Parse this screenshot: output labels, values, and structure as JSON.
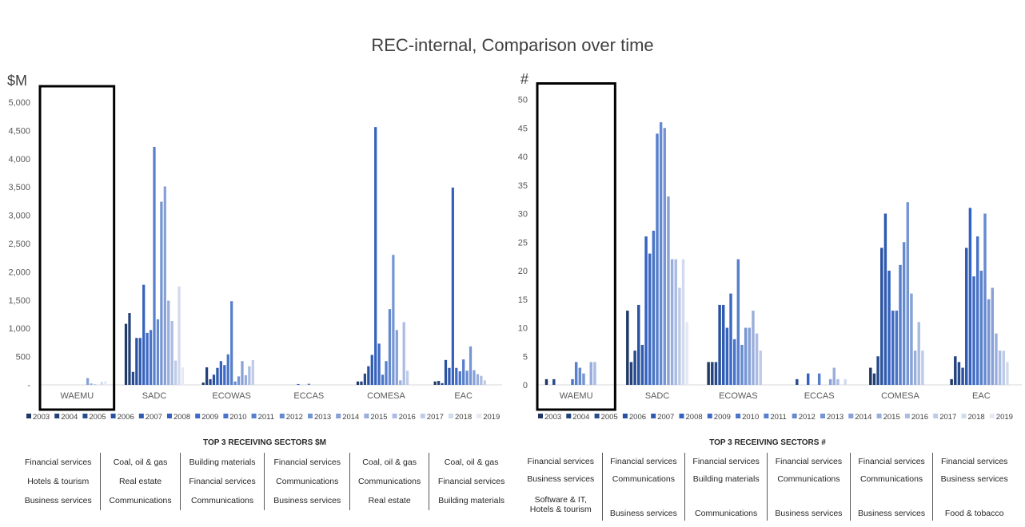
{
  "title": "REC-internal, Comparison over time",
  "colors": [
    "#203864",
    "#24417a",
    "#274b8f",
    "#2a52a0",
    "#2e5ab0",
    "#3562bf",
    "#3f6bc4",
    "#4a74c8",
    "#577fcc",
    "#658acf",
    "#7595d3",
    "#87a1d7",
    "#99aedc",
    "#abbce2",
    "#bfcbe7",
    "#d2daee",
    "#e4e9f5"
  ],
  "chart_data": [
    {
      "type": "bar",
      "name": "value",
      "unit_label": "$M",
      "ylim": [
        0,
        5000
      ],
      "yticks": [
        "-",
        "500",
        "1,000",
        "1,500",
        "2,000",
        "2,500",
        "3,000",
        "3,500",
        "4,000",
        "4,500",
        "5,000"
      ],
      "categories": [
        "WAEMU",
        "SADC",
        "ECOWAS",
        "ECCAS",
        "COMESA",
        "EAC"
      ],
      "years": [
        "2003",
        "2004",
        "2005",
        "2006",
        "2007",
        "2008",
        "2009",
        "2010",
        "2011",
        "2012",
        "2013",
        "2014",
        "2015",
        "2016",
        "2017",
        "2018",
        "2019"
      ],
      "highlight": "WAEMU",
      "values": [
        [
          0,
          0,
          0,
          0,
          0,
          0,
          0,
          0,
          0,
          0,
          0,
          120,
          25,
          10,
          0,
          55,
          65
        ],
        [
          1080,
          1270,
          230,
          830,
          830,
          1770,
          920,
          970,
          4210,
          1160,
          3240,
          3510,
          1490,
          1130,
          430,
          1740,
          310
        ],
        [
          40,
          310,
          100,
          180,
          300,
          420,
          350,
          540,
          1480,
          60,
          150,
          420,
          170,
          330,
          440,
          0,
          0
        ],
        [
          0,
          0,
          0,
          0,
          0,
          15,
          0,
          0,
          20,
          0,
          0,
          0,
          0,
          0,
          0,
          0,
          0
        ],
        [
          60,
          60,
          200,
          330,
          530,
          4560,
          730,
          180,
          420,
          1340,
          2300,
          970,
          80,
          1110,
          250,
          0,
          0
        ],
        [
          60,
          70,
          30,
          440,
          300,
          3490,
          300,
          240,
          450,
          250,
          680,
          260,
          190,
          160,
          80,
          0,
          0
        ]
      ],
      "sectors_title": "TOP 3 RECEIVING SECTORS $M",
      "sectors": [
        [
          "Financial services",
          "Coal, oil & gas",
          "Building materials",
          "Financial services",
          "Coal, oil & gas",
          "Coal, oil & gas"
        ],
        [
          "Hotels & tourism",
          "Real estate",
          "Financial services",
          "Communications",
          "Communications",
          "Financial services"
        ],
        [
          "Business services",
          "Communications",
          "Communications",
          "Business services",
          "Real estate",
          "Building materials"
        ]
      ]
    },
    {
      "type": "bar",
      "name": "count",
      "unit_label": "#",
      "ylim": [
        0,
        50
      ],
      "yticks": [
        "0",
        "5",
        "10",
        "15",
        "20",
        "25",
        "30",
        "35",
        "40",
        "45",
        "50"
      ],
      "categories": [
        "WAEMU",
        "SADC",
        "ECOWAS",
        "ECCAS",
        "COMESA",
        "EAC"
      ],
      "years": [
        "2003",
        "2004",
        "2005",
        "2006",
        "2007",
        "2008",
        "2009",
        "2010",
        "2011",
        "2012",
        "2013",
        "2014",
        "2015",
        "2016",
        "2017",
        "2018",
        "2019"
      ],
      "highlight": "WAEMU",
      "values": [
        [
          1,
          0,
          1,
          0,
          0,
          0,
          0,
          1,
          4,
          3,
          2,
          0,
          4,
          4,
          0,
          0,
          0
        ],
        [
          13,
          4,
          6,
          14,
          7,
          26,
          23,
          27,
          44,
          46,
          45,
          33,
          22,
          22,
          17,
          22,
          11
        ],
        [
          4,
          4,
          4,
          14,
          14,
          10,
          16,
          8,
          22,
          7,
          10,
          10,
          13,
          9,
          6,
          0,
          0
        ],
        [
          0,
          0,
          1,
          0,
          0,
          2,
          0,
          0,
          2,
          0,
          0,
          1,
          3,
          1,
          0,
          1,
          0
        ],
        [
          3,
          2,
          5,
          24,
          30,
          20,
          13,
          13,
          21,
          25,
          32,
          16,
          6,
          11,
          6,
          0,
          0
        ],
        [
          1,
          5,
          4,
          3,
          24,
          31,
          19,
          26,
          20,
          30,
          15,
          17,
          9,
          6,
          6,
          4,
          0
        ]
      ],
      "sectors_title": "TOP 3 RECEIVING SECTORS #",
      "sectors": [
        [
          "Financial services",
          "Financial services",
          "Financial services",
          "Financial services",
          "Financial services",
          "Financial services"
        ],
        [
          "Business services",
          "Communications",
          "Building materials",
          "Communications",
          "Communications",
          "Business services"
        ],
        [
          "Software & IT,\nHotels & tourism",
          "Business services",
          "Communications",
          "Business services",
          "Business services",
          "Food & tobacco"
        ]
      ]
    }
  ]
}
